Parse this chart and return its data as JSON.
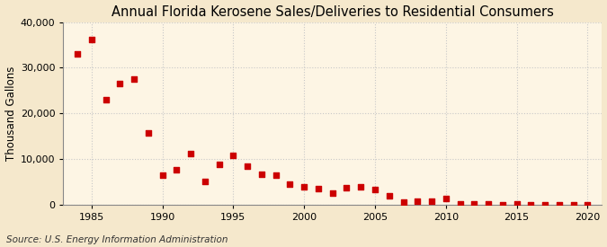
{
  "title": "Annual Florida Kerosene Sales/Deliveries to Residential Consumers",
  "ylabel": "Thousand Gallons",
  "source": "Source: U.S. Energy Information Administration",
  "background_color": "#f5e8cc",
  "plot_background_color": "#fdf5e4",
  "marker_color": "#cc0000",
  "years": [
    1984,
    1985,
    1986,
    1987,
    1988,
    1989,
    1990,
    1991,
    1992,
    1993,
    1994,
    1995,
    1996,
    1997,
    1998,
    1999,
    2000,
    2001,
    2002,
    2003,
    2004,
    2005,
    2006,
    2007,
    2008,
    2009,
    2010,
    2011,
    2012,
    2013,
    2014,
    2015,
    2016,
    2017,
    2018,
    2019,
    2020
  ],
  "values": [
    33000,
    36200,
    23000,
    26500,
    27500,
    15800,
    6500,
    7800,
    11300,
    5200,
    9000,
    10800,
    8500,
    6700,
    6500,
    4500,
    4000,
    3600,
    2600,
    3900,
    4000,
    3500,
    2100,
    700,
    800,
    900,
    1400,
    300,
    200,
    200,
    100,
    200,
    100,
    100,
    100,
    100,
    100
  ],
  "xlim": [
    1983,
    2021
  ],
  "ylim": [
    0,
    40000
  ],
  "xticks": [
    1985,
    1990,
    1995,
    2000,
    2005,
    2010,
    2015,
    2020
  ],
  "yticks": [
    0,
    10000,
    20000,
    30000,
    40000
  ],
  "grid_color": "#c8c8c8",
  "title_fontsize": 10.5,
  "label_fontsize": 8.5,
  "tick_fontsize": 8,
  "source_fontsize": 7.5,
  "marker_size": 15
}
